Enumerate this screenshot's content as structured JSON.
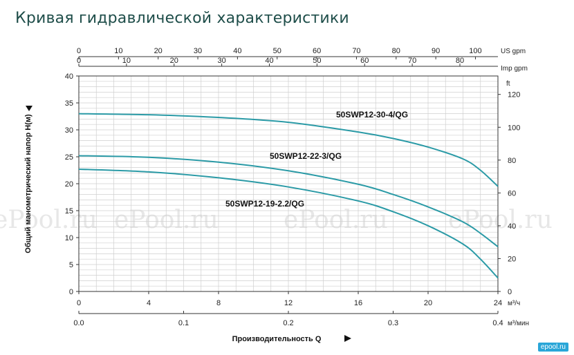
{
  "page": {
    "title": "Кривая гидравлической характеристики",
    "watermark": "ePool.ru",
    "corner_logo": "epool.ru"
  },
  "chart_data": {
    "type": "line",
    "ylabel": "Общий манометрический напор  H(м)",
    "xlabel": "Производительность Q",
    "x_unit_primary": "м³/ч",
    "x_unit_secondary": "м³/мин",
    "y_unit_right": "ft",
    "top_unit_us": "US gpm",
    "top_unit_imp": "Imp gpm",
    "xlim": [
      0,
      24
    ],
    "ylim": [
      0,
      40
    ],
    "x_ticks": [
      0,
      4,
      8,
      12,
      16,
      20,
      24
    ],
    "x_tick_labels": [
      "0",
      "4",
      "8",
      "12",
      "16",
      "20",
      "24"
    ],
    "x2_ticks": [
      0,
      0.1,
      0.2,
      0.3,
      0.4
    ],
    "x2_tick_labels": [
      "0.0",
      "0.1",
      "0.2",
      "0.3",
      "0.4"
    ],
    "y_ticks": [
      0,
      5,
      10,
      15,
      20,
      25,
      30,
      35,
      40
    ],
    "y_tick_labels": [
      "0",
      "5",
      "10",
      "15",
      "20",
      "25",
      "30",
      "35",
      "40"
    ],
    "ft_ticks": [
      0,
      20,
      40,
      60,
      80,
      100,
      120
    ],
    "ft_tick_labels": [
      "0",
      "20",
      "40",
      "60",
      "80",
      "100",
      "120"
    ],
    "us_gpm_ticks": [
      0,
      10,
      20,
      30,
      40,
      50,
      60,
      70,
      80,
      90,
      100
    ],
    "us_gpm_tick_labels": [
      "0",
      "10",
      "20",
      "30",
      "40",
      "50",
      "60",
      "70",
      "80",
      "90",
      "100"
    ],
    "imp_gpm_ticks": [
      0,
      10,
      20,
      30,
      40,
      50,
      60,
      70,
      80
    ],
    "imp_gpm_tick_labels": [
      "0",
      "10",
      "20",
      "30",
      "40",
      "50",
      "60",
      "70",
      "80"
    ],
    "grid": true,
    "line_color": "#2a9aa6",
    "series": [
      {
        "name": "50SWP12-30-4/QG",
        "x": [
          0,
          4,
          8,
          12,
          16,
          18,
          20,
          22,
          23,
          24
        ],
        "y": [
          33,
          32.8,
          32.3,
          31.4,
          29.6,
          28.4,
          26.8,
          24.6,
          22.5,
          19.5
        ]
      },
      {
        "name": "50SWP12-22-3/QG",
        "x": [
          0,
          4,
          8,
          12,
          16,
          18,
          20,
          22,
          23,
          24
        ],
        "y": [
          25.2,
          24.9,
          24.0,
          22.4,
          19.9,
          18.0,
          15.7,
          12.9,
          10.8,
          8.3
        ]
      },
      {
        "name": "50SWP12-19-2.2/QG",
        "x": [
          0,
          4,
          8,
          12,
          16,
          18,
          20,
          22,
          23,
          24
        ],
        "y": [
          22.7,
          22.2,
          21.1,
          19.4,
          16.8,
          14.8,
          12.2,
          8.8,
          6.0,
          2.5
        ]
      }
    ]
  }
}
